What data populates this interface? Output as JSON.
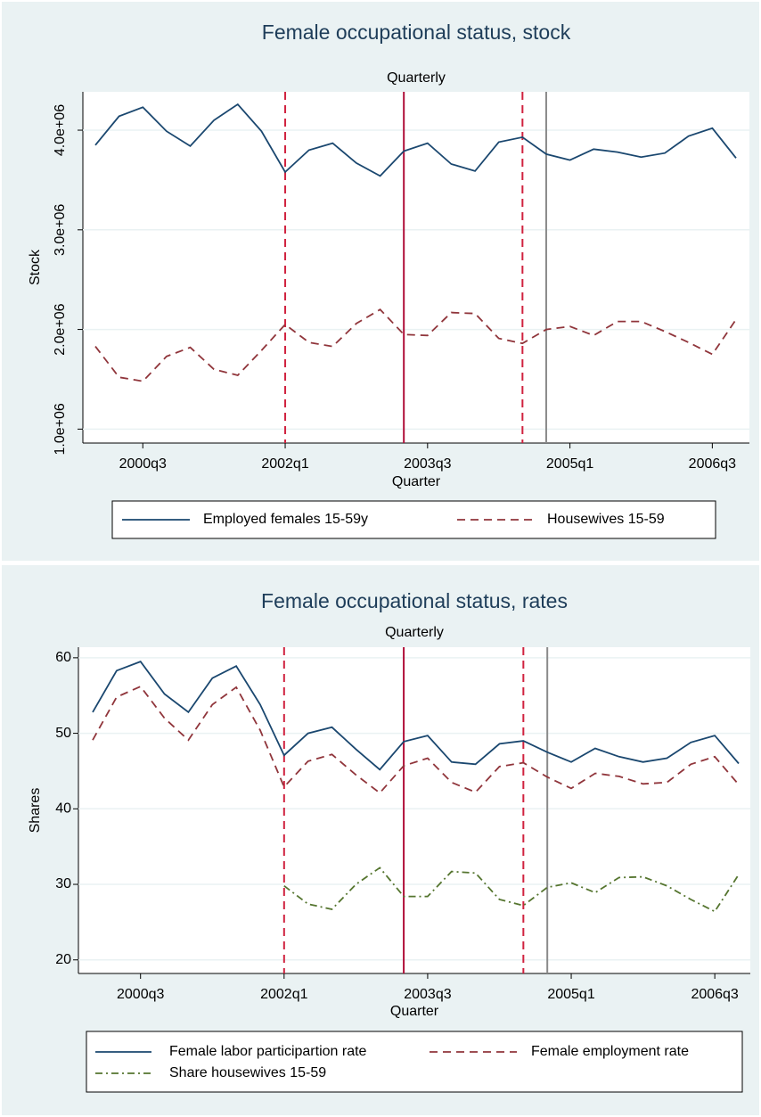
{
  "chart_data": [
    {
      "type": "line",
      "title": "Female occupational status, stock",
      "subtitle": "Quarterly",
      "x_label": "Quarter",
      "y_label": "Stock",
      "categories": [
        null,
        null,
        "2000q3",
        null,
        null,
        null,
        null,
        null,
        "2002q1",
        null,
        null,
        null,
        null,
        null,
        "2003q3",
        null,
        null,
        null,
        null,
        null,
        "2005q1",
        null,
        null,
        null,
        null,
        null,
        "2006q3",
        null
      ],
      "series": [
        {
          "name": "Employed females 15-59y",
          "color": "#1a476f",
          "dash": "solid",
          "values": [
            3850000,
            4140000,
            4230000,
            3990000,
            3840000,
            4100000,
            4260000,
            3990000,
            3580000,
            3800000,
            3870000,
            3670000,
            3540000,
            3790000,
            3870000,
            3660000,
            3590000,
            3880000,
            3930000,
            3760000,
            3700000,
            3810000,
            3780000,
            3730000,
            3770000,
            3940000,
            4020000,
            3720000
          ]
        },
        {
          "name": "Housewives 15-59",
          "color": "#90353b",
          "dash": "dash",
          "values": [
            1830000,
            1520000,
            1480000,
            1730000,
            1820000,
            1600000,
            1540000,
            1790000,
            2050000,
            1870000,
            1830000,
            2060000,
            2200000,
            1950000,
            1940000,
            2170000,
            2160000,
            1910000,
            1860000,
            2000000,
            2030000,
            1940000,
            2080000,
            2080000,
            1980000,
            1870000,
            1750000,
            2100000
          ]
        }
      ],
      "ylim": [
        860000,
        4385000
      ],
      "yticks": [
        {
          "value": 1000000,
          "label": "1.0e+06"
        },
        {
          "value": 2000000,
          "label": "2.0e+06"
        },
        {
          "value": 3000000,
          "label": "3.0e+06"
        },
        {
          "value": 4000000,
          "label": "4.0e+06"
        }
      ],
      "grid": true,
      "xlines": [
        {
          "at": 8,
          "color": "#d0223f",
          "dash": "dash"
        },
        {
          "at": 13,
          "color": "#b0103a",
          "dash": "solid"
        },
        {
          "at": 18,
          "color": "#d0223f",
          "dash": "dash"
        },
        {
          "at": 19,
          "color": "#8a8a8a",
          "dash": "solid"
        }
      ],
      "legend": "bottom"
    },
    {
      "type": "line",
      "title": "Female occupational status, rates",
      "subtitle": "Quarterly",
      "x_label": "Quarter",
      "y_label": "Shares",
      "categories": [
        null,
        null,
        "2000q3",
        null,
        null,
        null,
        null,
        null,
        "2002q1",
        null,
        null,
        null,
        null,
        null,
        "2003q3",
        null,
        null,
        null,
        null,
        null,
        "2005q1",
        null,
        null,
        null,
        null,
        null,
        "2006q3",
        null
      ],
      "series": [
        {
          "name": "Female labor participartion rate",
          "color": "#1a476f",
          "dash": "solid",
          "values": [
            52.8,
            58.3,
            59.5,
            55.2,
            52.8,
            57.3,
            58.9,
            53.8,
            47.1,
            50.0,
            50.8,
            47.9,
            45.2,
            48.9,
            49.7,
            46.2,
            45.9,
            48.6,
            49.0,
            47.5,
            46.2,
            48.0,
            46.9,
            46.2,
            46.7,
            48.8,
            49.7,
            46.0
          ]
        },
        {
          "name": "Female employment rate",
          "color": "#90353b",
          "dash": "dash",
          "values": [
            49.1,
            54.8,
            56.2,
            52.0,
            49.1,
            53.8,
            56.1,
            50.4,
            42.9,
            46.3,
            47.2,
            44.5,
            42.1,
            45.7,
            46.7,
            43.5,
            42.2,
            45.6,
            46.1,
            44.2,
            42.7,
            44.7,
            44.3,
            43.3,
            43.5,
            45.9,
            46.9,
            43.2
          ]
        },
        {
          "name": "Share housewives 15-59",
          "color": "#55752f",
          "dash": "dashdot",
          "values": [
            null,
            null,
            null,
            null,
            null,
            null,
            null,
            null,
            29.8,
            27.4,
            26.7,
            30.0,
            32.2,
            28.4,
            28.4,
            31.7,
            31.5,
            28.0,
            27.2,
            29.6,
            30.2,
            28.9,
            30.9,
            31.0,
            29.8,
            28.0,
            26.4,
            31.3
          ]
        }
      ],
      "ylim": [
        18.2,
        61.4
      ],
      "yticks": [
        20,
        30,
        40,
        50,
        60
      ],
      "grid": true,
      "xlines": [
        {
          "at": 8,
          "color": "#d0223f",
          "dash": "dash"
        },
        {
          "at": 13,
          "color": "#b0103a",
          "dash": "solid"
        },
        {
          "at": 18,
          "color": "#d0223f",
          "dash": "dash"
        },
        {
          "at": 19,
          "color": "#8a8a8a",
          "dash": "solid"
        }
      ],
      "legend": "bottom"
    }
  ]
}
